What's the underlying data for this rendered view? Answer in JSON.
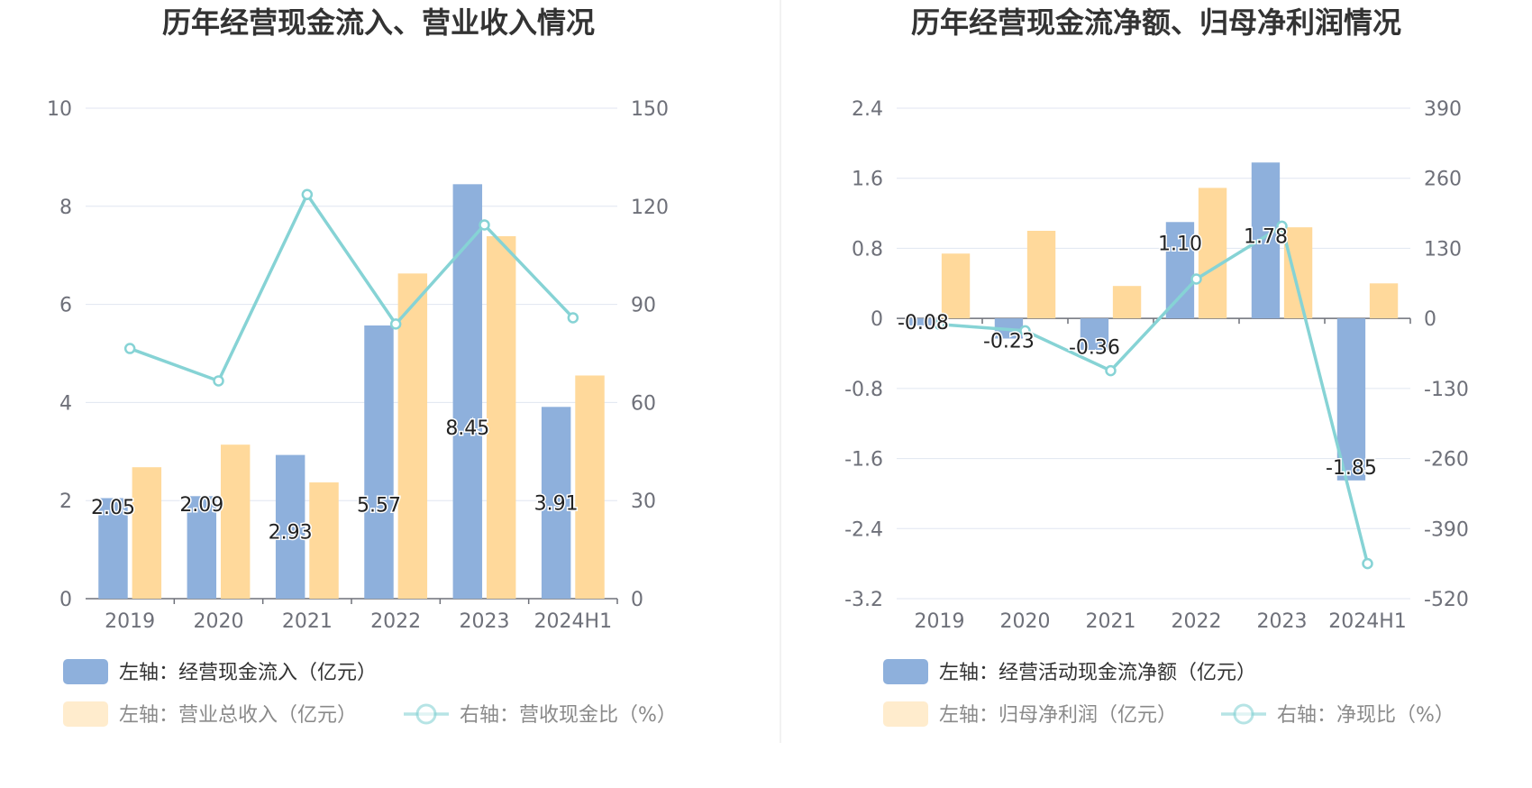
{
  "chart_data": [
    {
      "type": "bar",
      "title": "历年经营现金流入、营业收入情况",
      "categories": [
        "2019",
        "2020",
        "2021",
        "2022",
        "2023",
        "2024H1"
      ],
      "left_axis": {
        "min": 0,
        "max": 10,
        "ticks": [
          "0",
          "2",
          "4",
          "6",
          "8",
          "10"
        ]
      },
      "right_axis": {
        "min": 0,
        "max": 150,
        "ticks": [
          "0",
          "30",
          "60",
          "90",
          "120",
          "150"
        ]
      },
      "series": [
        {
          "name": "左轴：经营现金流入（亿元）",
          "kind": "bar",
          "axis": "left",
          "color": "#8eb0dc",
          "values": [
            2.05,
            2.09,
            2.93,
            5.57,
            8.45,
            3.91
          ],
          "labels": [
            "2.05",
            "2.09",
            "2.93",
            "5.57",
            "8.45",
            "3.91"
          ]
        },
        {
          "name": "左轴：营业总收入（亿元）",
          "kind": "bar",
          "axis": "left",
          "color": "#ffd99b",
          "values": [
            2.68,
            3.14,
            2.37,
            6.63,
            7.39,
            4.55
          ]
        },
        {
          "name": "右轴：营收现金比（%）",
          "kind": "line",
          "axis": "right",
          "color": "#86d3d5",
          "values": [
            76.5,
            66.6,
            123.6,
            84.0,
            114.3,
            85.9
          ]
        }
      ],
      "grid": true
    },
    {
      "type": "bar",
      "title": "历年经营现金流净额、归母净利润情况",
      "categories": [
        "2019",
        "2020",
        "2021",
        "2022",
        "2023",
        "2024H1"
      ],
      "left_axis": {
        "min": -3.2,
        "max": 2.4,
        "ticks": [
          "-3.2",
          "-2.4",
          "-1.6",
          "-0.8",
          "0",
          "0.8",
          "1.6",
          "2.4"
        ]
      },
      "right_axis": {
        "min": -520,
        "max": 390,
        "ticks": [
          "-520",
          "-390",
          "-260",
          "-130",
          "0",
          "130",
          "260",
          "390"
        ]
      },
      "series": [
        {
          "name": "左轴：经营活动现金流净额（亿元）",
          "kind": "bar",
          "axis": "left",
          "color": "#8eb0dc",
          "values": [
            -0.08,
            -0.23,
            -0.36,
            1.1,
            1.78,
            -1.85
          ],
          "labels": [
            "-0.08",
            "-0.23",
            "-0.36",
            "1.10",
            "1.78",
            "-1.85"
          ]
        },
        {
          "name": "左轴：归母净利润（亿元）",
          "kind": "bar",
          "axis": "left",
          "color": "#ffd99b",
          "values": [
            0.74,
            1.0,
            0.37,
            1.49,
            1.04,
            0.4
          ]
        },
        {
          "name": "右轴：净现比（%）",
          "kind": "line",
          "axis": "right",
          "color": "#86d3d5",
          "values": [
            -11,
            -23,
            -97,
            73,
            171,
            -455
          ]
        }
      ],
      "grid": true
    }
  ]
}
